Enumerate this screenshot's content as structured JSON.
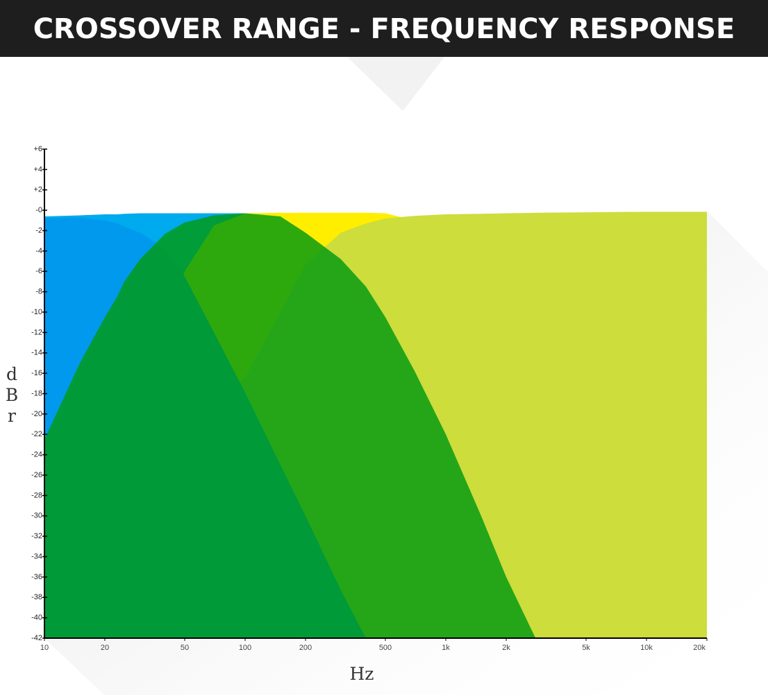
{
  "chart_data": {
    "type": "area",
    "title": "CROSSOVER RANGE - FREQUENCY RESPONSE",
    "y_label": "dBr",
    "x_label": "Hz",
    "log_x": true,
    "x": [
      10,
      15,
      20,
      23,
      25,
      30,
      40,
      50,
      70,
      100,
      150,
      200,
      300,
      400,
      500,
      700,
      1000,
      1500,
      2000,
      2800,
      5000,
      10000,
      20000
    ],
    "series": [
      {
        "color": "#00aaee",
        "opacity": 1,
        "values": [
          -0.6,
          -0.5,
          -0.4,
          -0.4,
          -0.35,
          -0.3,
          -0.3,
          -0.3,
          -0.3,
          -0.3,
          -4,
          -9,
          -17,
          -23,
          -28,
          -35,
          -42,
          null,
          null,
          null,
          null,
          null,
          null
        ]
      },
      {
        "color": "#ffee00",
        "opacity": 1,
        "values": [
          null,
          null,
          null,
          null,
          null,
          null,
          -12,
          -6,
          -1.5,
          -0.3,
          -0.25,
          -0.25,
          -0.25,
          -0.25,
          -0.3,
          -1,
          -4,
          -10,
          -15,
          -21,
          -32,
          -42,
          null
        ]
      },
      {
        "color": "#ccdd3c",
        "opacity": 1,
        "values": [
          null,
          null,
          null,
          -42,
          -40.5,
          -36.5,
          -30,
          -25,
          -19,
          -16.4,
          -10,
          -5.3,
          -2.2,
          -1.3,
          -0.8,
          -0.55,
          -0.4,
          -0.35,
          -0.3,
          -0.25,
          -0.2,
          -0.15,
          -0.15
        ]
      },
      {
        "color": "#0099ee",
        "opacity": 1,
        "values": [
          -0.8,
          -0.7,
          -1.0,
          -1.3,
          -1.6,
          -2.2,
          -3.8,
          -6.5,
          -12,
          -17.9,
          -25,
          -30,
          -37.3,
          -42,
          null,
          null,
          null,
          null,
          null,
          null,
          null,
          null,
          null
        ]
      },
      {
        "color": "#009a10",
        "opacity": 0.82,
        "values": [
          -22.5,
          -15,
          -10.5,
          -8.5,
          -7,
          -4.8,
          -2.3,
          -1.2,
          -0.5,
          -0.3,
          -0.6,
          -2.2,
          -4.8,
          -7.5,
          -10.5,
          -15.8,
          -22,
          -30,
          -36,
          -42,
          null,
          null,
          null
        ]
      }
    ],
    "xlim": [
      10,
      20000
    ],
    "ylim": [
      -42,
      6
    ],
    "xticks": [
      10,
      20,
      50,
      100,
      200,
      500,
      {
        "value": 1000,
        "label": "1k"
      },
      {
        "value": 2000,
        "label": "2k"
      },
      {
        "value": 5000,
        "label": "5k"
      },
      {
        "value": 10000,
        "label": "10k"
      },
      {
        "value": 20000,
        "label": "20k"
      }
    ],
    "yticks": [
      {
        "value": 6,
        "label": "+6"
      },
      {
        "value": 4,
        "label": "+4"
      },
      {
        "value": 2,
        "label": "+2"
      },
      {
        "value": 0,
        "label": "-0"
      },
      -2,
      -4,
      -6,
      -8,
      -10,
      -12,
      -14,
      -16,
      -18,
      -20,
      -22,
      -24,
      -26,
      -28,
      -30,
      -32,
      -34,
      -36,
      -38,
      -40,
      -42
    ]
  }
}
